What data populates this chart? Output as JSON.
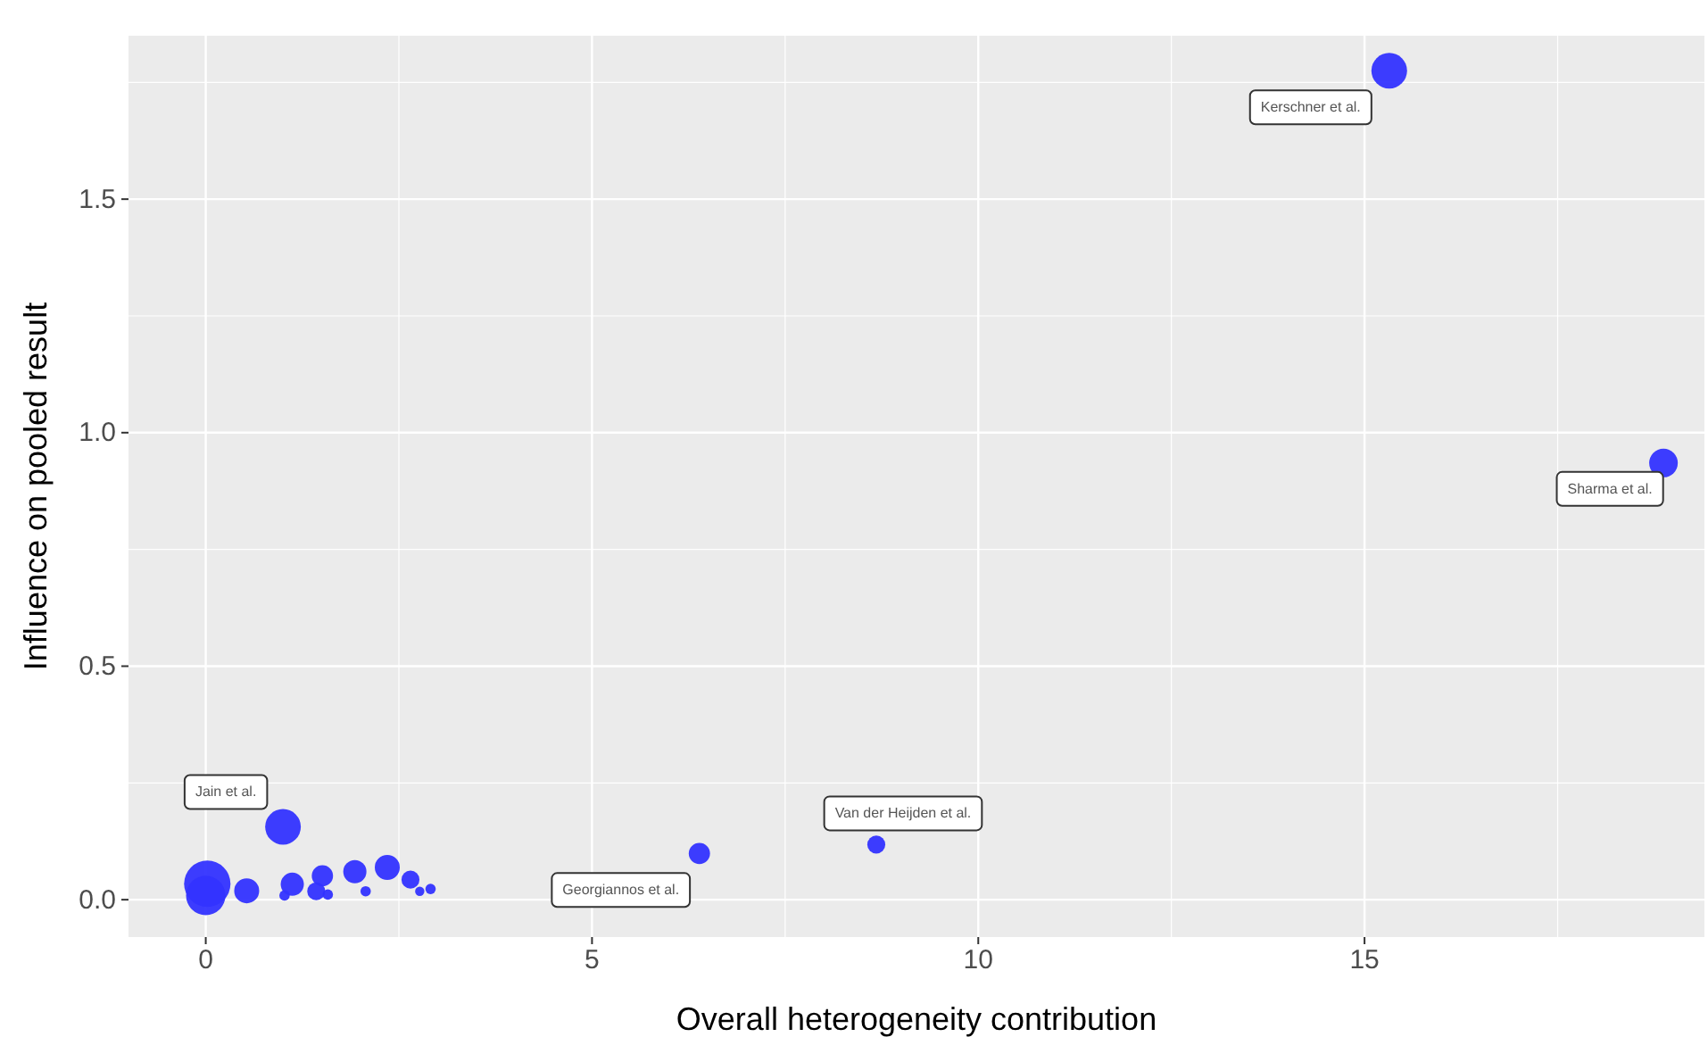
{
  "chart_data": {
    "type": "bubble",
    "xlabel": "Overall heterogeneity contribution",
    "ylabel": "Influence on pooled result",
    "xlim": [
      -1,
      19.4
    ],
    "ylim": [
      -0.08,
      1.85
    ],
    "xticks": [
      0,
      5,
      10,
      15
    ],
    "yticks": [
      {
        "value": 0,
        "label": "0.0"
      },
      {
        "value": 0.5,
        "label": "0.5"
      },
      {
        "value": 1,
        "label": "1.0"
      },
      {
        "value": 1.5,
        "label": "1.5"
      }
    ],
    "grid": true,
    "marker": "circle",
    "series": [
      {
        "color": "#3333ff",
        "x": [
          15.32,
          18.87,
          8.68,
          6.39,
          1.0,
          0.02,
          0.0,
          0.53,
          1.12,
          1.02,
          1.51,
          1.43,
          1.58,
          1.93,
          2.07,
          2.35,
          2.65,
          2.77,
          2.91
        ],
        "values": [
          1.775,
          0.935,
          0.118,
          0.099,
          0.156,
          0.034,
          0.009,
          0.019,
          0.033,
          0.009,
          0.051,
          0.018,
          0.011,
          0.06,
          0.018,
          0.069,
          0.043,
          0.018,
          0.023
        ],
        "sizes": [
          0.59,
          0.38,
          0.15,
          0.21,
          0.59,
          1,
          0.72,
          0.29,
          0.25,
          0.05,
          0.21,
          0.15,
          0.05,
          0.25,
          0.05,
          0.29,
          0.15,
          0.04,
          0.05
        ]
      }
    ],
    "annotations": [
      {
        "text": "Kerschner et al.",
        "x": 15.32,
        "y": 1.775
      },
      {
        "text": "Sharma et al.",
        "x": 18.87,
        "y": 0.935
      },
      {
        "text": "Van der Heijden et al.",
        "x": 8.68,
        "y": 0.118
      },
      {
        "text": "Georgiannos et al.",
        "x": 6.39,
        "y": 0.099
      },
      {
        "text": "Jain et al.",
        "x": 1.0,
        "y": 0.156
      }
    ]
  }
}
